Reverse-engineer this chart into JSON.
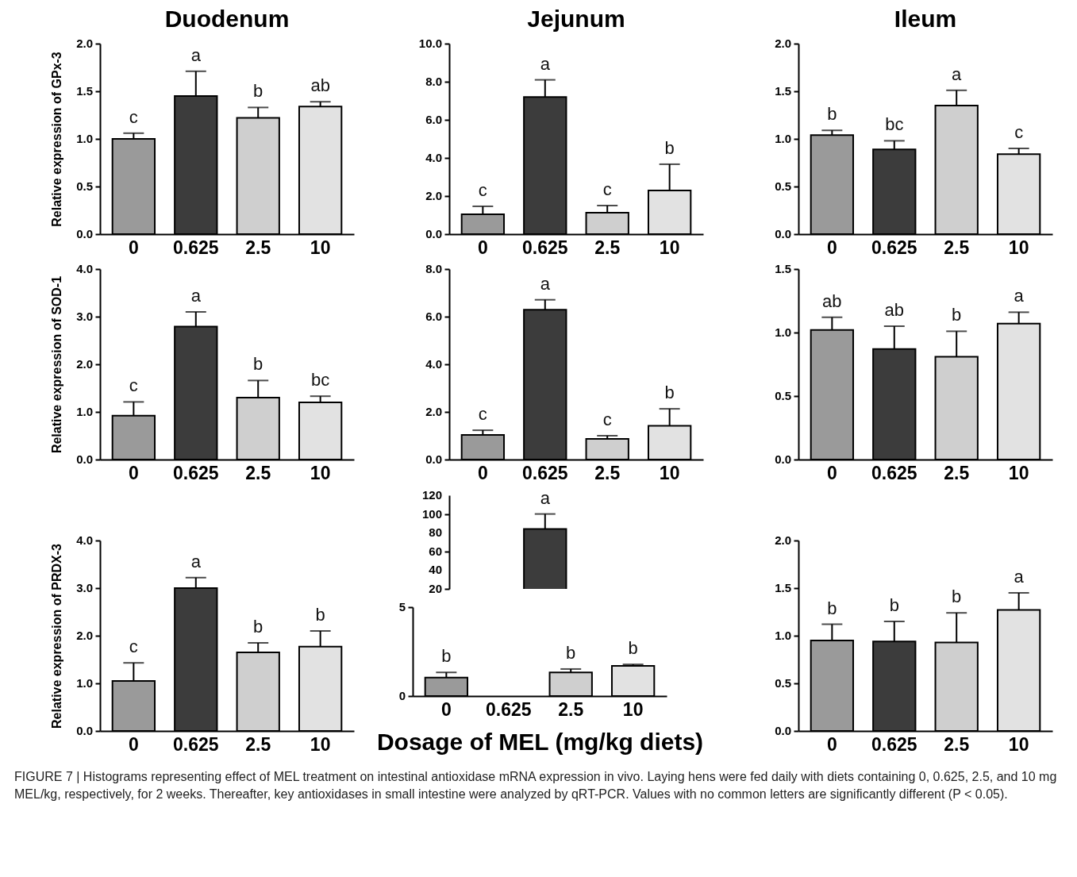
{
  "chart_data": [
    {
      "type": "bar",
      "title": "Duodenum",
      "ylabel": "Relative expression of GPx-3",
      "categories": [
        "0",
        "0.625",
        "2.5",
        "10"
      ],
      "values": [
        1.0,
        1.45,
        1.22,
        1.34
      ],
      "errors": [
        [
          1.0,
          1.06
        ],
        [
          1.45,
          1.71
        ],
        [
          1.22,
          1.33
        ],
        [
          1.34,
          1.39
        ]
      ],
      "colors": [
        "#9a9a9a",
        "#3c3c3c",
        "#cfcfcf",
        "#e2e2e2"
      ],
      "ylim": [
        0,
        2
      ],
      "yticks": [
        {
          "value": 0,
          "label": "0.0"
        },
        0.5,
        {
          "value": 1,
          "label": "1.0"
        },
        1.5,
        {
          "value": 2,
          "label": "2.0"
        }
      ],
      "annotations": [
        {
          "text": "c",
          "x": "0",
          "y": 1.06
        },
        {
          "text": "a",
          "x": "0.625",
          "y": 1.71
        },
        {
          "text": "b",
          "x": "2.5",
          "y": 1.33
        },
        {
          "text": "ab",
          "x": "10",
          "y": 1.39
        }
      ]
    },
    {
      "type": "bar",
      "title": "Jejunum",
      "categories": [
        "0",
        "0.625",
        "2.5",
        "10"
      ],
      "values": [
        1.04,
        7.2,
        1.12,
        2.29
      ],
      "errors": [
        [
          1.04,
          1.46
        ],
        [
          7.2,
          8.1
        ],
        [
          1.12,
          1.5
        ],
        [
          2.29,
          3.67
        ]
      ],
      "colors": [
        "#9a9a9a",
        "#3c3c3c",
        "#cfcfcf",
        "#e2e2e2"
      ],
      "ylim": [
        0,
        10
      ],
      "yticks": [
        {
          "value": 0,
          "label": "0.0"
        },
        {
          "value": 2,
          "label": "2.0"
        },
        {
          "value": 4,
          "label": "4.0"
        },
        {
          "value": 6,
          "label": "6.0"
        },
        {
          "value": 8,
          "label": "8.0"
        },
        {
          "value": 10,
          "label": "10.0"
        }
      ],
      "annotations": [
        {
          "text": "c",
          "x": "0",
          "y": 1.46
        },
        {
          "text": "a",
          "x": "0.625",
          "y": 8.1
        },
        {
          "text": "c",
          "x": "2.5",
          "y": 1.5
        },
        {
          "text": "b",
          "x": "10",
          "y": 3.67
        }
      ]
    },
    {
      "type": "bar",
      "title": "Ileum",
      "categories": [
        "0",
        "0.625",
        "2.5",
        "10"
      ],
      "values": [
        1.04,
        0.89,
        1.35,
        0.84
      ],
      "errors": [
        [
          1.04,
          1.09
        ],
        [
          0.89,
          0.98
        ],
        [
          1.35,
          1.51
        ],
        [
          0.84,
          0.9
        ]
      ],
      "colors": [
        "#9a9a9a",
        "#3c3c3c",
        "#cfcfcf",
        "#e2e2e2"
      ],
      "ylim": [
        0,
        2
      ],
      "yticks": [
        {
          "value": 0,
          "label": "0.0"
        },
        0.5,
        {
          "value": 1,
          "label": "1.0"
        },
        1.5,
        {
          "value": 2,
          "label": "2.0"
        }
      ],
      "annotations": [
        {
          "text": "b",
          "x": "0",
          "y": 1.09
        },
        {
          "text": "bc",
          "x": "0.625",
          "y": 0.98
        },
        {
          "text": "a",
          "x": "2.5",
          "y": 1.51
        },
        {
          "text": "c",
          "x": "10",
          "y": 0.9
        }
      ]
    },
    {
      "type": "bar",
      "ylabel": "Relative expression of SOD-1",
      "categories": [
        "0",
        "0.625",
        "2.5",
        "10"
      ],
      "values": [
        0.92,
        2.79,
        1.3,
        1.2
      ],
      "errors": [
        [
          0.92,
          1.21
        ],
        [
          2.79,
          3.1
        ],
        [
          1.3,
          1.66
        ],
        [
          1.2,
          1.33
        ]
      ],
      "colors": [
        "#9a9a9a",
        "#3c3c3c",
        "#cfcfcf",
        "#e2e2e2"
      ],
      "ylim": [
        0,
        4
      ],
      "yticks": [
        {
          "value": 0,
          "label": "0.0"
        },
        {
          "value": 1,
          "label": "1.0"
        },
        {
          "value": 2,
          "label": "2.0"
        },
        {
          "value": 3,
          "label": "3.0"
        },
        {
          "value": 4,
          "label": "4.0"
        }
      ],
      "annotations": [
        {
          "text": "c",
          "x": "0",
          "y": 1.21
        },
        {
          "text": "a",
          "x": "0.625",
          "y": 3.1
        },
        {
          "text": "b",
          "x": "2.5",
          "y": 1.66
        },
        {
          "text": "bc",
          "x": "10",
          "y": 1.33
        }
      ]
    },
    {
      "type": "bar",
      "categories": [
        "0",
        "0.625",
        "2.5",
        "10"
      ],
      "values": [
        1.03,
        6.29,
        0.87,
        1.42
      ],
      "errors": [
        [
          1.03,
          1.23
        ],
        [
          6.29,
          6.71
        ],
        [
          0.87,
          1.0
        ],
        [
          1.42,
          2.13
        ]
      ],
      "colors": [
        "#9a9a9a",
        "#3c3c3c",
        "#cfcfcf",
        "#e2e2e2"
      ],
      "ylim": [
        0,
        8
      ],
      "yticks": [
        {
          "value": 0,
          "label": "0.0"
        },
        {
          "value": 2,
          "label": "2.0"
        },
        {
          "value": 4,
          "label": "4.0"
        },
        {
          "value": 6,
          "label": "6.0"
        },
        {
          "value": 8,
          "label": "8.0"
        }
      ],
      "annotations": [
        {
          "text": "c",
          "x": "0",
          "y": 1.23
        },
        {
          "text": "a",
          "x": "0.625",
          "y": 6.71
        },
        {
          "text": "c",
          "x": "2.5",
          "y": 1.0
        },
        {
          "text": "b",
          "x": "10",
          "y": 2.13
        }
      ]
    },
    {
      "type": "bar",
      "categories": [
        "0",
        "0.625",
        "2.5",
        "10"
      ],
      "values": [
        1.02,
        0.87,
        0.81,
        1.07
      ],
      "errors": [
        [
          1.02,
          1.12
        ],
        [
          0.87,
          1.05
        ],
        [
          0.81,
          1.01
        ],
        [
          1.07,
          1.16
        ]
      ],
      "colors": [
        "#9a9a9a",
        "#3c3c3c",
        "#cfcfcf",
        "#e2e2e2"
      ],
      "ylim": [
        0,
        1.5
      ],
      "yticks": [
        {
          "value": 0,
          "label": "0.0"
        },
        0.5,
        {
          "value": 1,
          "label": "1.0"
        },
        1.5
      ],
      "annotations": [
        {
          "text": "ab",
          "x": "0",
          "y": 1.12
        },
        {
          "text": "ab",
          "x": "0.625",
          "y": 1.05
        },
        {
          "text": "b",
          "x": "2.5",
          "y": 1.01
        },
        {
          "text": "a",
          "x": "10",
          "y": 1.16
        }
      ]
    },
    {
      "type": "bar",
      "ylabel": "Relative expression of PRDX-3",
      "categories": [
        "0",
        "0.625",
        "2.5",
        "10"
      ],
      "values": [
        1.05,
        3.0,
        1.65,
        1.77
      ],
      "errors": [
        [
          1.05,
          1.43
        ],
        [
          3.0,
          3.22
        ],
        [
          1.65,
          1.85
        ],
        [
          1.77,
          2.1
        ]
      ],
      "colors": [
        "#9a9a9a",
        "#3c3c3c",
        "#cfcfcf",
        "#e2e2e2"
      ],
      "ylim": [
        0,
        4
      ],
      "yticks": [
        {
          "value": 0,
          "label": "0.0"
        },
        {
          "value": 1,
          "label": "1.0"
        },
        {
          "value": 2,
          "label": "2.0"
        },
        {
          "value": 3,
          "label": "3.0"
        },
        {
          "value": 4,
          "label": "4.0"
        }
      ],
      "annotations": [
        {
          "text": "c",
          "x": "0",
          "y": 1.43
        },
        {
          "text": "a",
          "x": "0.625",
          "y": 3.22
        },
        {
          "text": "b",
          "x": "2.5",
          "y": 1.85
        },
        {
          "text": "b",
          "x": "10",
          "y": 2.1
        }
      ]
    },
    {
      "type": "bar",
      "tick_labels": "y",
      "categories": [
        "0",
        "0.625",
        "2.5",
        "10"
      ],
      "values": [
        null,
        84,
        null,
        null
      ],
      "errors": [
        null,
        [
          84,
          100
        ],
        null,
        null
      ],
      "colors": [
        "#9a9a9a",
        "#3c3c3c",
        "#cfcfcf",
        "#e2e2e2"
      ],
      "ylim": [
        20,
        120
      ],
      "yticks": [
        20,
        40,
        60,
        80,
        100,
        120
      ],
      "annotations": [
        {
          "text": "a",
          "x": "0.625",
          "y": 100
        }
      ]
    },
    {
      "type": "bar",
      "xlabel": "Dosage of MEL (mg/kg diets)",
      "categories": [
        "0",
        "0.625",
        "2.5",
        "10"
      ],
      "values": [
        1.04,
        null,
        1.33,
        1.7
      ],
      "errors": [
        [
          1.04,
          1.33
        ],
        null,
        [
          1.33,
          1.52
        ],
        [
          1.7,
          1.78
        ]
      ],
      "colors": [
        "#9a9a9a",
        "#3c3c3c",
        "#cfcfcf",
        "#e2e2e2"
      ],
      "ylim": [
        0,
        5
      ],
      "yticks": [
        0,
        5
      ],
      "annotations": [
        {
          "text": "b",
          "x": "0",
          "y": 1.33
        },
        {
          "text": "b",
          "x": "2.5",
          "y": 1.52
        },
        {
          "text": "b",
          "x": "10",
          "y": 1.78
        },
        "FIGURE 7 | Histograms representing effect of MEL treatment on intestinal antioxidase mRNA expression in vivo. Laying hens were fed daily with diets containing 0, 0.625, 2.5, and 10 mg MEL/kg, respectively, for 2 weeks. Thereafter, key antioxidases in small intestine were analyzed by qRT-PCR. Values with no common letters are significantly different (P < 0.05)."
      ]
    },
    {
      "type": "bar",
      "categories": [
        "0",
        "0.625",
        "2.5",
        "10"
      ],
      "values": [
        0.95,
        0.94,
        0.93,
        1.27
      ],
      "errors": [
        [
          0.95,
          1.12
        ],
        [
          0.94,
          1.15
        ],
        [
          0.93,
          1.24
        ],
        [
          1.27,
          1.45
        ]
      ],
      "colors": [
        "#9a9a9a",
        "#3c3c3c",
        "#cfcfcf",
        "#e2e2e2"
      ],
      "ylim": [
        0,
        2
      ],
      "yticks": [
        {
          "value": 0,
          "label": "0.0"
        },
        0.5,
        {
          "value": 1,
          "label": "1.0"
        },
        1.5,
        {
          "value": 2,
          "label": "2.0"
        }
      ],
      "annotations": [
        {
          "text": "b",
          "x": "0",
          "y": 1.12
        },
        {
          "text": "b",
          "x": "0.625",
          "y": 1.15
        },
        {
          "text": "b",
          "x": "2.5",
          "y": 1.24
        },
        {
          "text": "a",
          "x": "10",
          "y": 1.45
        }
      ]
    }
  ]
}
